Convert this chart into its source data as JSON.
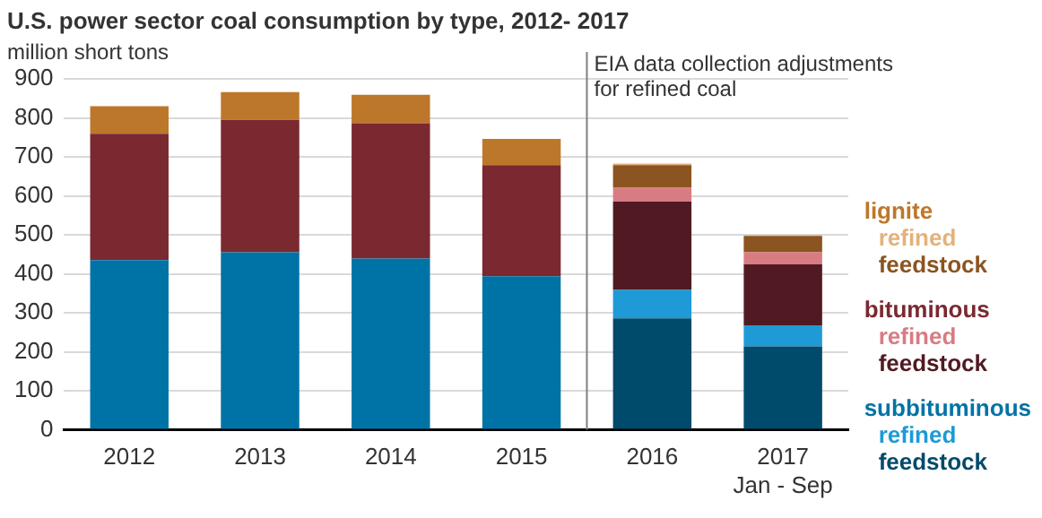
{
  "chart_data": {
    "type": "bar",
    "title": "U.S. power sector coal consumption by type, 2012- 2017",
    "ylabel": "million short tons",
    "categories": [
      "2012",
      "2013",
      "2014",
      "2015",
      "2016",
      "2017\nJan - Sep"
    ],
    "stacked": true,
    "series": [
      {
        "name": "subbituminous",
        "color": "#0073a6",
        "values": [
          435,
          455,
          439,
          394,
          null,
          null
        ]
      },
      {
        "name": "feedstock",
        "color": "#004a6b",
        "values": [
          null,
          null,
          null,
          null,
          286,
          214
        ]
      },
      {
        "name": "refined",
        "color": "#1e9ad6",
        "values": [
          null,
          null,
          null,
          null,
          73,
          54
        ]
      },
      {
        "name": "bituminous",
        "color": "#7a2931",
        "values": [
          324,
          340,
          347,
          285,
          null,
          null
        ]
      },
      {
        "name": "feedstock",
        "color": "#511a22",
        "values": [
          null,
          null,
          null,
          null,
          226,
          156
        ]
      },
      {
        "name": "refined",
        "color": "#d97b83",
        "values": [
          null,
          null,
          null,
          null,
          36,
          31
        ]
      },
      {
        "name": "lignite",
        "color": "#bd772b",
        "values": [
          71,
          71,
          73,
          67,
          null,
          null
        ]
      },
      {
        "name": "feedstock",
        "color": "#8b5420",
        "values": [
          null,
          null,
          null,
          null,
          58,
          42
        ]
      },
      {
        "name": "refined",
        "color": "#e3b27a",
        "values": [
          null,
          null,
          null,
          null,
          4,
          2
        ]
      }
    ],
    "ylim": [
      0,
      900
    ],
    "yticks": [
      0,
      100,
      200,
      300,
      400,
      500,
      600,
      700,
      800,
      900
    ],
    "grid": "y",
    "legend": "right",
    "ref_lines": [
      {
        "axis": "x",
        "value": "2016",
        "label": "EIA data collection adjustments for refined coal",
        "color": "#808080"
      }
    ]
  }
}
